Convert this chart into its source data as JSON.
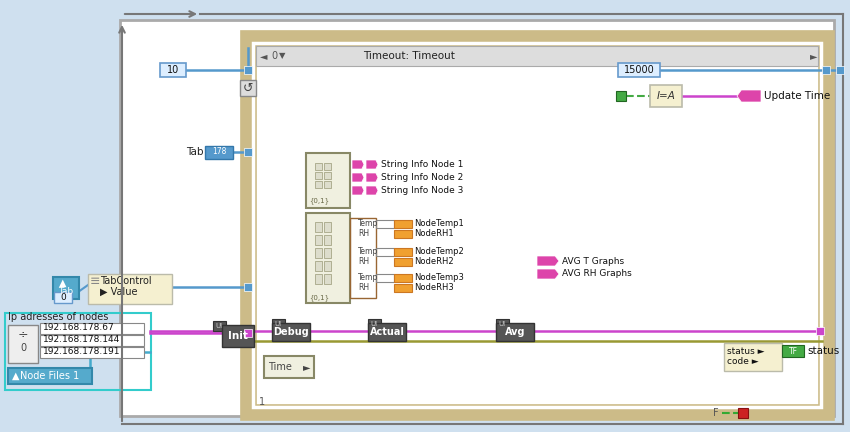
{
  "bg_color": "#cfe0ef",
  "title": "Timeout: Timeout",
  "ip_addresses": [
    "192.168.178.67",
    "192.168.178.144",
    "192.168.178.191"
  ],
  "string_labels": [
    "String Info Node 1",
    "String Info Node 2",
    "String Info Node 3"
  ],
  "avg_labels": [
    "AVG T Graphs",
    "AVG RH Graphs"
  ],
  "node_rows": [
    [
      "NodeTemp1",
      "NodeRH1"
    ],
    [
      "NodeTemp2",
      "NodeRH2"
    ],
    [
      "NodeTemp3",
      "NodeRH3"
    ]
  ],
  "status_label": "status",
  "update_time_label": "Update Time",
  "value_15000": "15000",
  "value_10": "10",
  "tabcontrol_label": "TabControl",
  "value_label": "Value",
  "ip_section_label": "Ip adresses of nodes",
  "init_label": "Init",
  "debug_label": "Debug",
  "actual_label": "Actual",
  "avg_label": "Avg",
  "time_label": "Time",
  "node_files_label": "Node Files 1",
  "orange_color": "#f0a030",
  "blue_wire": "#5599cc",
  "magenta_wire": "#cc44cc",
  "cyan_wire": "#44aacc",
  "green_wire": "#44aa44",
  "olive_wire": "#999933",
  "pink_terminal": "#dd44aa",
  "yellow_bg": "#f5f0d0",
  "hatch_color": "#ccbb88",
  "frame_bg": "#ffffff"
}
